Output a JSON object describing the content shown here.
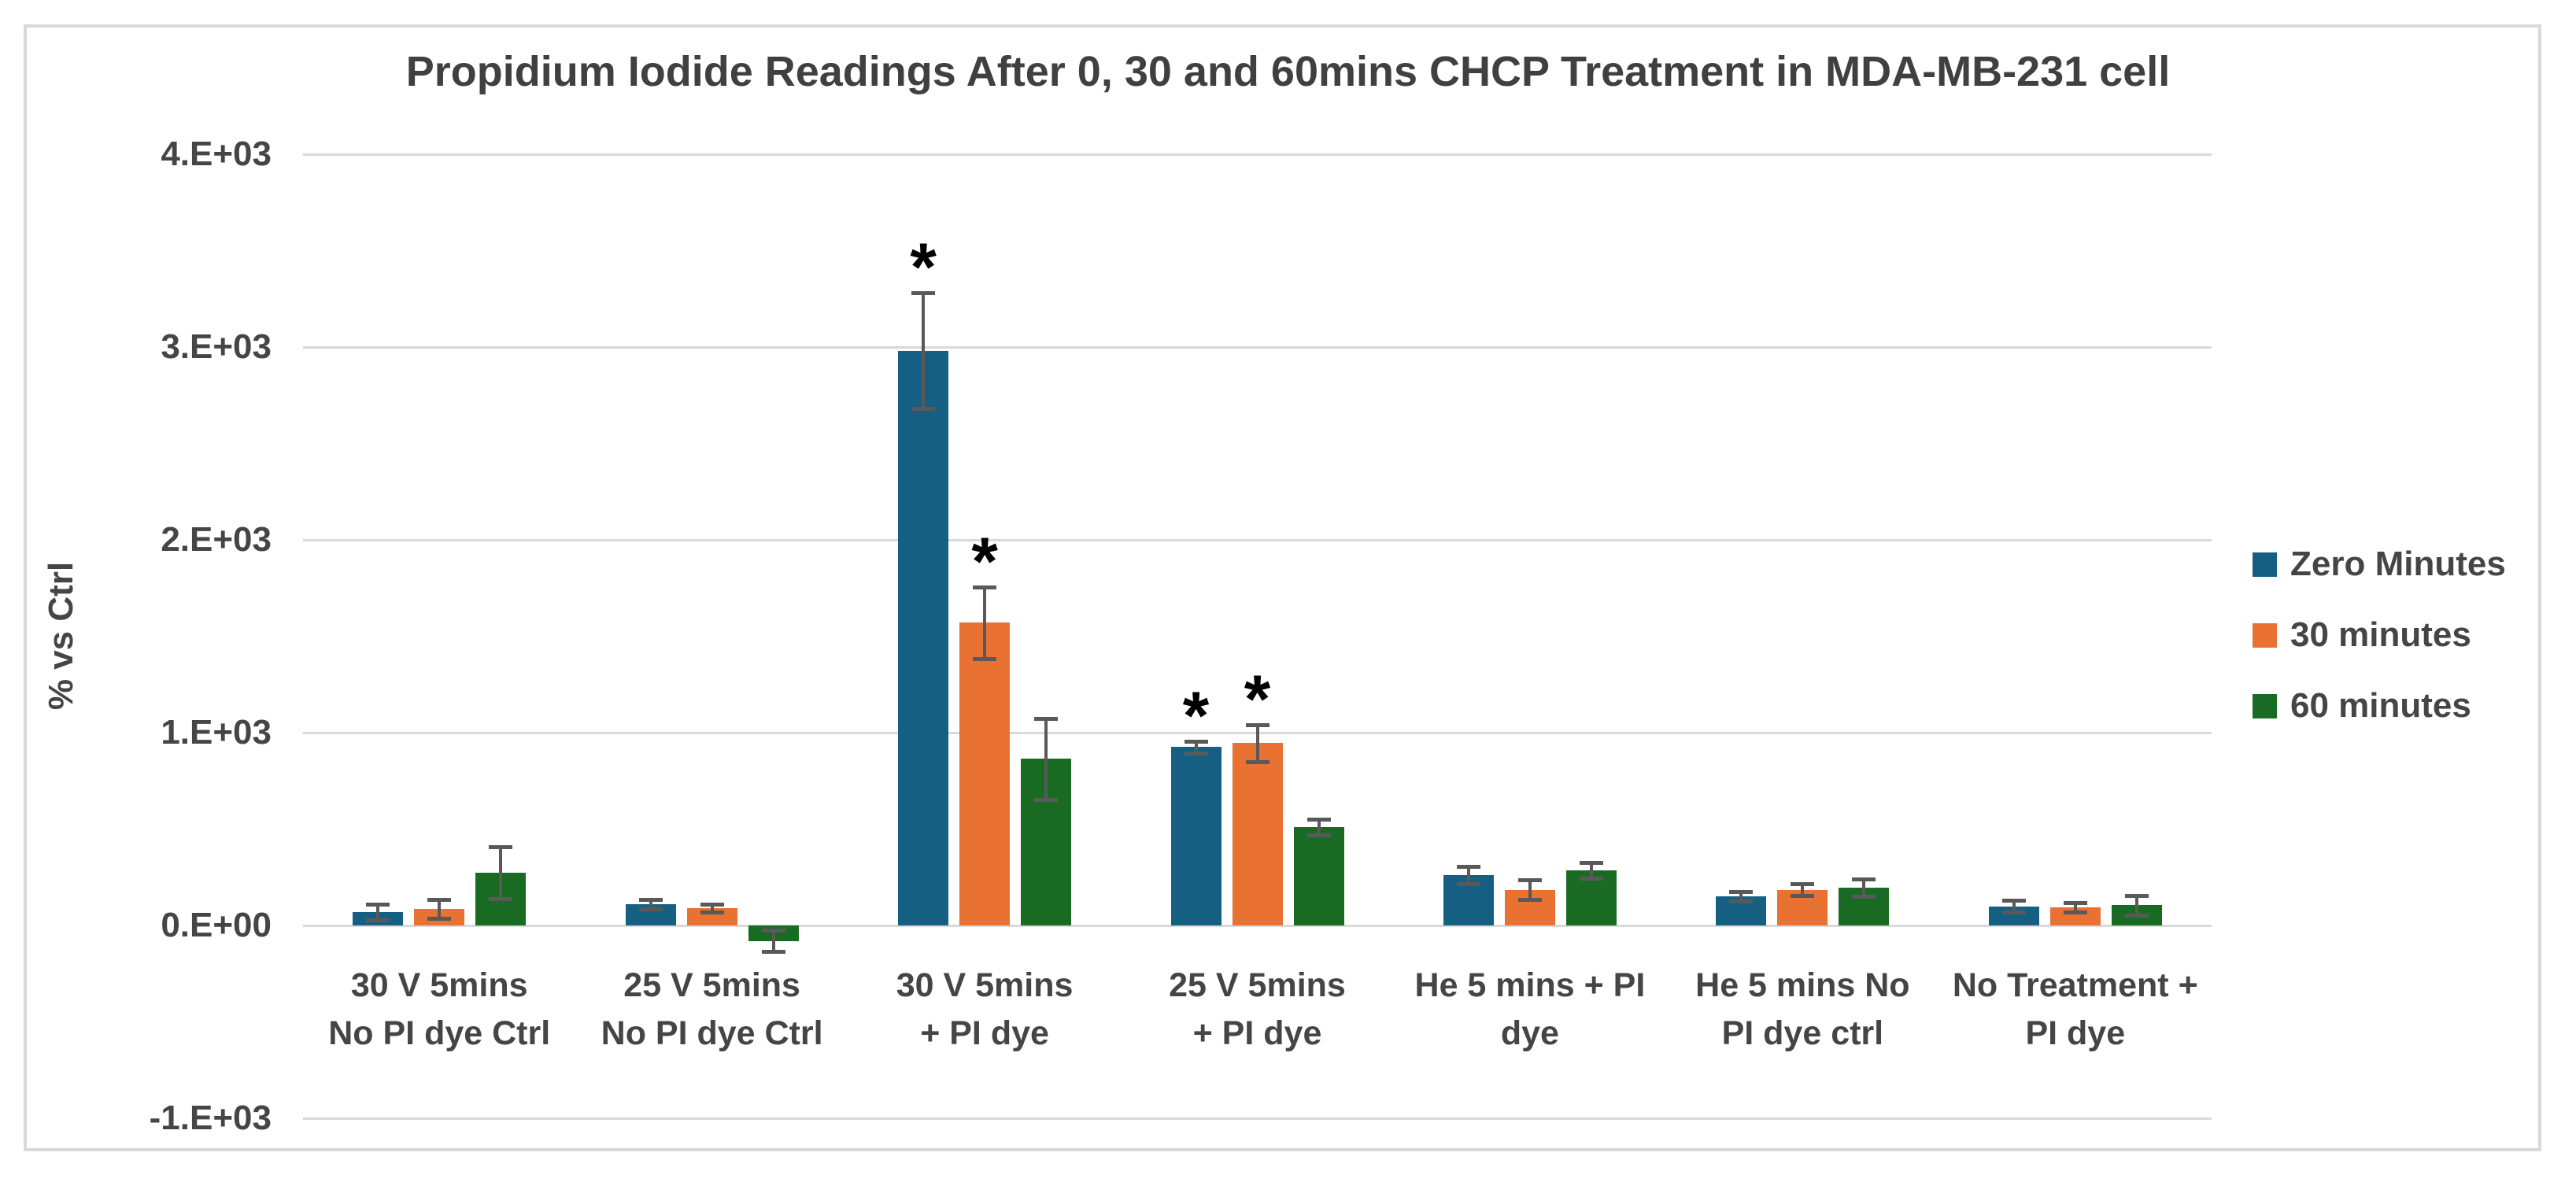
{
  "chart_data": {
    "type": "bar",
    "title": "Propidium Iodide Readings After 0, 30 and 60mins CHCP Treatment in MDA-MB-231 cell",
    "xlabel": "",
    "ylabel": "% vs Ctrl",
    "ylim": [
      -1000,
      4000
    ],
    "ytick_step": 1000,
    "yticks": [
      {
        "value": 4000,
        "label": "4.E+03"
      },
      {
        "value": 3000,
        "label": "3.E+03"
      },
      {
        "value": 2000,
        "label": "2.E+03"
      },
      {
        "value": 1000,
        "label": "1.E+03"
      },
      {
        "value": 0,
        "label": "0.E+00"
      },
      {
        "value": -1000,
        "label": "-1.E+03"
      }
    ],
    "grid": true,
    "gridline_color": "#D9D9D9",
    "error_bar_color": "#595959",
    "significance_marker": "*",
    "legend_position": "right",
    "categories": [
      "30 V 5mins\nNo PI dye Ctrl",
      "25 V 5mins\nNo PI dye Ctrl",
      "30 V 5mins\n+ PI dye",
      "25 V 5mins\n+ PI dye",
      "He 5 mins + PI\ndye",
      "He 5 mins No\nPI dye ctrl",
      "No Treatment +\nPI dye"
    ],
    "series": [
      {
        "name": "Zero Minutes",
        "color": "#156082",
        "values": [
          70,
          110,
          2980,
          925,
          260,
          150,
          100
        ],
        "errors": [
          40,
          25,
          300,
          30,
          45,
          25,
          30
        ],
        "significant": [
          false,
          false,
          true,
          true,
          false,
          false,
          false
        ]
      },
      {
        "name": "30 minutes",
        "color": "#E97132",
        "values": [
          85,
          90,
          1570,
          945,
          185,
          185,
          95
        ],
        "errors": [
          50,
          20,
          185,
          95,
          50,
          30,
          25
        ],
        "significant": [
          false,
          false,
          true,
          true,
          false,
          false,
          false
        ]
      },
      {
        "name": "60 minutes",
        "color": "#196B24",
        "values": [
          275,
          -80,
          865,
          510,
          285,
          195,
          105
        ],
        "errors": [
          135,
          55,
          210,
          40,
          40,
          45,
          50
        ],
        "significant": [
          false,
          false,
          false,
          false,
          false,
          false,
          false
        ]
      }
    ]
  }
}
